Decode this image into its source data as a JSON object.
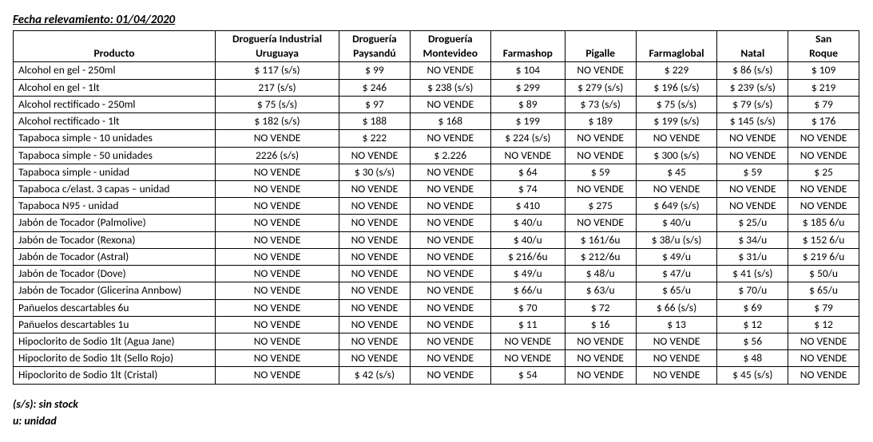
{
  "header": {
    "title": "Fecha relevamiento: 01/04/2020"
  },
  "table": {
    "columns": [
      "Producto",
      "Droguería Industrial Uruguaya",
      "Droguería Paysandú",
      "Droguería Montevideo",
      "Farmashop",
      "Pigalle",
      "Farmaglobal",
      "Natal",
      "San Roque"
    ],
    "rows": [
      [
        "Alcohol en gel - 250ml",
        "$ 117 (s/s)",
        "$ 99",
        "NO VENDE",
        "$ 104",
        "NO VENDE",
        "$ 229",
        "$ 86 (s/s)",
        "$ 109"
      ],
      [
        "Alcohol en gel  - 1lt",
        "217 (s/s)",
        "$ 246",
        "$ 238 (s/s)",
        "$ 299",
        "$ 279 (s/s)",
        "$ 196 (s/s)",
        "$ 239 (s/s)",
        "$ 219"
      ],
      [
        "Alcohol rectificado - 250ml",
        "$ 75 (s/s)",
        "$ 97",
        "NO VENDE",
        "$ 89",
        "$ 73 (s/s)",
        "$ 75 (s/s)",
        "$ 79 (s/s)",
        "$ 79"
      ],
      [
        "Alcohol rectificado - 1lt",
        "$ 182 (s/s)",
        "$ 188",
        "$ 168",
        "$ 199",
        "$ 189",
        "$ 199 (s/s)",
        "$ 145 (s/s)",
        "$ 176"
      ],
      [
        "Tapaboca simple - 10 unidades",
        "NO VENDE",
        "$ 222",
        "NO VENDE",
        "$ 224 (s/s)",
        "NO VENDE",
        "NO VENDE",
        "NO VENDE",
        "NO VENDE"
      ],
      [
        "Tapaboca simple - 50 unidades",
        "2226 (s/s)",
        "NO VENDE",
        "$ 2.226",
        "NO VENDE",
        "NO VENDE",
        "$ 300 (s/s)",
        "NO VENDE",
        "NO VENDE"
      ],
      [
        "Tapaboca simple - unidad",
        "NO VENDE",
        "$ 30 (s/s)",
        "NO VENDE",
        "$ 64",
        "$ 59",
        "$ 45",
        "$ 59",
        "$ 25"
      ],
      [
        "Tapaboca c/elast. 3 capas – unidad",
        "NO VENDE",
        "NO VENDE",
        "NO VENDE",
        "$ 74",
        "NO VENDE",
        "NO VENDE",
        "NO VENDE",
        "NO VENDE"
      ],
      [
        "Tapaboca N95 - unidad",
        "NO VENDE",
        "NO VENDE",
        "NO VENDE",
        "$ 410",
        "$ 275",
        "$ 649 (s/s)",
        "NO VENDE",
        "NO VENDE"
      ],
      [
        "Jabón de Tocador (Palmolive)",
        "NO VENDE",
        "NO VENDE",
        "NO VENDE",
        "$ 40/u",
        "NO VENDE",
        "$ 40/u",
        "$ 25/u",
        "$ 185 6/u"
      ],
      [
        "Jabón de Tocador (Rexona)",
        "NO VENDE",
        "NO VENDE",
        "NO VENDE",
        "$ 40/u",
        "$ 161/6u",
        "$ 38/u (s/s)",
        "$ 34/u",
        "$ 152 6/u"
      ],
      [
        "Jabón de Tocador (Astral)",
        "NO VENDE",
        "NO VENDE",
        "NO VENDE",
        "$ 216/6u",
        "$ 212/6u",
        "$ 49/u",
        "$ 31/u",
        "$ 219 6/u"
      ],
      [
        "Jabón de Tocador (Dove)",
        "NO VENDE",
        "NO VENDE",
        "NO VENDE",
        "$ 49/u",
        "$ 48/u",
        "$ 47/u",
        "$ 41 (s/s)",
        "$ 50/u"
      ],
      [
        "Jabón de Tocador (Glicerina Annbow)",
        "NO VENDE",
        "NO VENDE",
        "NO VENDE",
        "$ 66/u",
        "$ 63/u",
        "$ 65/u",
        "$ 70/u",
        "$ 65/u"
      ],
      [
        "Pañuelos descartables 6u",
        "NO VENDE",
        "NO VENDE",
        "NO VENDE",
        "$ 70",
        "$ 72",
        "$ 66 (s/s)",
        "$ 69",
        "$ 79"
      ],
      [
        "Pañuelos descartables 1u",
        "NO VENDE",
        "NO VENDE",
        "NO VENDE",
        "$ 11",
        "$ 16",
        "$ 13",
        "$ 12",
        "$ 12"
      ],
      [
        "Hipoclorito de Sodio 1lt (Agua Jane)",
        "NO VENDE",
        "NO VENDE",
        "NO VENDE",
        "NO VENDE",
        "NO VENDE",
        "NO VENDE",
        "$ 56",
        "NO VENDE"
      ],
      [
        "Hipoclorito de Sodio 1lt (Sello Rojo)",
        "NO VENDE",
        "NO VENDE",
        "NO VENDE",
        "NO VENDE",
        "NO VENDE",
        "NO VENDE",
        "$ 48",
        "NO VENDE"
      ],
      [
        "Hipoclorito de Sodio 1lt (Cristal)",
        "NO VENDE",
        "$ 42 (s/s)",
        "NO VENDE",
        "$ 54",
        "NO VENDE",
        "NO VENDE",
        "$ 45 (s/s)",
        "NO VENDE"
      ]
    ]
  },
  "legend": {
    "line1": "(s/s): sin stock",
    "line2": "u: unidad"
  }
}
